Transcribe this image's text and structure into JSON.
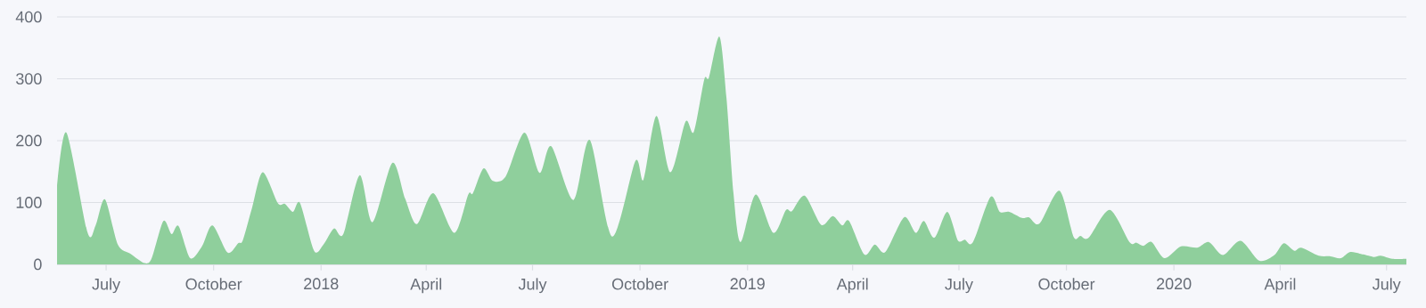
{
  "chart_data": {
    "type": "area",
    "color": "#8fcf9c",
    "grid": "y",
    "x": [
      "2017-05-20",
      "2017-05-28",
      "2017-06-15",
      "2017-06-22",
      "2017-06-30",
      "2017-07-11",
      "2017-07-22",
      "2017-08-03",
      "2017-08-09",
      "2017-08-19",
      "2017-08-26",
      "2017-09-01",
      "2017-09-11",
      "2017-09-21",
      "2017-09-30",
      "2017-10-13",
      "2017-10-22",
      "2017-10-26",
      "2017-11-03",
      "2017-11-12",
      "2017-11-25",
      "2017-12-01",
      "2017-12-08",
      "2017-12-14",
      "2017-12-26",
      "2018-01-03",
      "2018-01-12",
      "2018-01-20",
      "2018-02-03",
      "2018-02-14",
      "2018-03-03",
      "2018-03-14",
      "2018-03-24",
      "2018-04-07",
      "2018-04-25",
      "2018-05-07",
      "2018-05-11",
      "2018-05-20",
      "2018-05-28",
      "2018-06-08",
      "2018-06-24",
      "2018-07-07",
      "2018-07-17",
      "2018-08-05",
      "2018-08-19",
      "2018-09-07",
      "2018-09-27",
      "2018-10-04",
      "2018-10-15",
      "2018-10-27",
      "2018-11-09",
      "2018-11-16",
      "2018-11-25",
      "2018-11-29",
      "2018-12-08",
      "2018-12-14",
      "2018-12-20",
      "2018-12-26",
      "2019-01-08",
      "2019-01-23",
      "2019-02-03",
      "2019-02-08",
      "2019-02-19",
      "2019-03-05",
      "2019-03-15",
      "2019-03-23",
      "2019-03-29",
      "2019-04-11",
      "2019-04-20",
      "2019-04-29",
      "2019-05-15",
      "2019-05-25",
      "2019-06-01",
      "2019-06-10",
      "2019-06-21",
      "2019-06-30",
      "2019-07-06",
      "2019-07-13",
      "2019-07-28",
      "2019-08-05",
      "2019-08-13",
      "2019-08-24",
      "2019-08-30",
      "2019-09-08",
      "2019-09-25",
      "2019-10-07",
      "2019-10-13",
      "2019-10-20",
      "2019-11-07",
      "2019-11-24",
      "2019-11-30",
      "2019-12-06",
      "2019-12-13",
      "2019-12-24",
      "2020-01-07",
      "2020-01-21",
      "2020-01-31",
      "2020-02-12",
      "2020-02-27",
      "2020-03-14",
      "2020-03-27",
      "2020-04-04",
      "2020-04-13",
      "2020-04-19",
      "2020-05-04",
      "2020-05-14",
      "2020-05-23",
      "2020-05-31",
      "2020-06-11",
      "2020-06-20",
      "2020-06-26",
      "2020-07-06",
      "2020-07-18"
    ],
    "values": [
      125,
      213,
      52,
      63,
      105,
      32,
      17,
      2,
      10,
      70,
      49,
      62,
      10,
      29,
      63,
      19,
      34,
      39,
      92,
      149,
      99,
      98,
      85,
      99,
      22,
      32,
      58,
      49,
      144,
      68,
      164,
      106,
      65,
      115,
      51,
      113,
      115,
      155,
      135,
      142,
      213,
      148,
      191,
      104,
      201,
      45,
      167,
      137,
      240,
      149,
      231,
      214,
      299,
      302,
      368,
      269,
      115,
      36,
      113,
      51,
      88,
      86,
      111,
      64,
      78,
      63,
      70,
      16,
      32,
      20,
      76,
      51,
      70,
      43,
      85,
      39,
      40,
      36,
      109,
      85,
      85,
      75,
      76,
      66,
      119,
      45,
      46,
      43,
      88,
      36,
      35,
      30,
      36,
      10,
      29,
      27,
      36,
      15,
      38,
      6,
      15,
      34,
      22,
      27,
      14,
      13,
      10,
      20,
      16,
      12,
      14,
      9,
      9
    ],
    "xlim": [
      "2017-05-20",
      "2020-07-18"
    ],
    "ylim": [
      0,
      400
    ],
    "xticks": [
      {
        "value": "2017-07-01",
        "label": "July"
      },
      {
        "value": "2017-10-01",
        "label": "October"
      },
      {
        "value": "2018-01-01",
        "label": "2018"
      },
      {
        "value": "2018-04-01",
        "label": "April"
      },
      {
        "value": "2018-07-01",
        "label": "July"
      },
      {
        "value": "2018-10-01",
        "label": "October"
      },
      {
        "value": "2019-01-01",
        "label": "2019"
      },
      {
        "value": "2019-04-01",
        "label": "April"
      },
      {
        "value": "2019-07-01",
        "label": "July"
      },
      {
        "value": "2019-10-01",
        "label": "October"
      },
      {
        "value": "2020-01-01",
        "label": "2020"
      },
      {
        "value": "2020-04-01",
        "label": "April"
      },
      {
        "value": "2020-07-01",
        "label": "July"
      }
    ],
    "yticks": [
      0,
      100,
      200,
      300,
      400
    ]
  }
}
